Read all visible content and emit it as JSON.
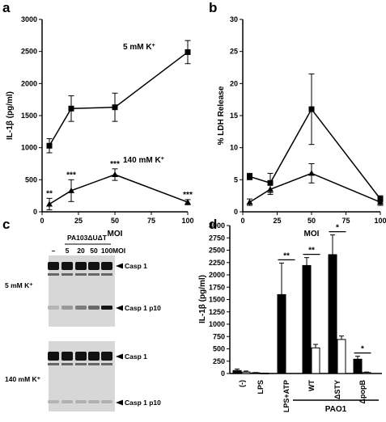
{
  "panel_labels": {
    "a": "a",
    "b": "b",
    "c": "c",
    "d": "d"
  },
  "chart_data": [
    {
      "panel": "a",
      "type": "line",
      "xlabel": "MOI",
      "ylabel": "IL-1β (pg/ml)",
      "xlim": [
        0,
        100
      ],
      "ylim": [
        0,
        3000
      ],
      "xticks": [
        0,
        25,
        50,
        75,
        100
      ],
      "yticks": [
        0,
        500,
        1000,
        1500,
        2000,
        2500,
        3000
      ],
      "series": [
        {
          "name": "5 mM K+",
          "marker": "square",
          "x": [
            5,
            20,
            50,
            100
          ],
          "values": [
            1030,
            1610,
            1630,
            2490
          ],
          "errors": [
            110,
            200,
            220,
            180
          ],
          "sig": [
            "",
            "",
            "",
            ""
          ]
        },
        {
          "name": "140 mM K+",
          "marker": "triangle",
          "x": [
            5,
            20,
            50,
            100
          ],
          "values": [
            120,
            330,
            580,
            150
          ],
          "errors": [
            90,
            170,
            90,
            40
          ],
          "sig": [
            "**",
            "***",
            "***",
            "***"
          ]
        }
      ]
    },
    {
      "panel": "b",
      "type": "line",
      "xlabel": "MOI",
      "ylabel": "% LDH Release",
      "xlim": [
        0,
        100
      ],
      "ylim": [
        0,
        30
      ],
      "xticks": [
        0,
        25,
        50,
        75,
        100
      ],
      "yticks": [
        0,
        5,
        10,
        15,
        20,
        25,
        30
      ],
      "series": [
        {
          "marker": "square",
          "x": [
            5,
            20,
            50,
            100
          ],
          "values": [
            5.5,
            4.5,
            16.0,
            2.0
          ],
          "errors": [
            0.5,
            1.5,
            5.5,
            0.5
          ]
        },
        {
          "marker": "triangle",
          "x": [
            5,
            20,
            50,
            100
          ],
          "values": [
            1.5,
            3.5,
            6.0,
            1.5
          ],
          "errors": [
            0.5,
            0.8,
            1.5,
            0.5
          ]
        }
      ]
    },
    {
      "panel": "d",
      "type": "bar",
      "ylabel": "IL-1β (pg/ml)",
      "ylim": [
        0,
        3000
      ],
      "yticks": [
        0,
        250,
        500,
        750,
        1000,
        1250,
        1500,
        1750,
        2000,
        2250,
        2500,
        2750,
        3000
      ],
      "categories": [
        "(-)",
        "LPS",
        "LPS+ATP",
        "WT",
        "ΔSTY",
        "ΔpopB"
      ],
      "series": [
        {
          "fill": "black",
          "values": [
            60,
            15,
            1600,
            2190,
            2410,
            290
          ],
          "errors": [
            30,
            5,
            640,
            160,
            400,
            60
          ]
        },
        {
          "fill": "white",
          "values": [
            30,
            5,
            null,
            520,
            690,
            20
          ],
          "errors": [
            20,
            3,
            null,
            70,
            70,
            10
          ]
        }
      ],
      "significance": [
        {
          "category": "LPS+ATP",
          "label": "**"
        },
        {
          "category": "WT",
          "label": "**"
        },
        {
          "category": "ΔSTY",
          "label": "*"
        },
        {
          "category": "ΔpopB",
          "label": "*"
        }
      ],
      "group_label": "PAO1",
      "group_categories": [
        "WT",
        "ΔSTY",
        "ΔpopB"
      ]
    }
  ],
  "blot": {
    "header": "PA103ΔUΔT",
    "lanes": [
      "–",
      "5",
      "20",
      "50",
      "100"
    ],
    "lane_unit": "MOI",
    "top_condition": "5 mM K⁺",
    "bottom_condition": "140 mM K⁺",
    "band_labels": {
      "casp1": "Casp 1",
      "p10": "Casp 1 p10"
    },
    "p10_intensity_top": [
      0.1,
      0.25,
      0.4,
      0.5,
      0.95
    ],
    "p10_intensity_bottom": [
      0.1,
      0.12,
      0.12,
      0.12,
      0.12
    ]
  }
}
